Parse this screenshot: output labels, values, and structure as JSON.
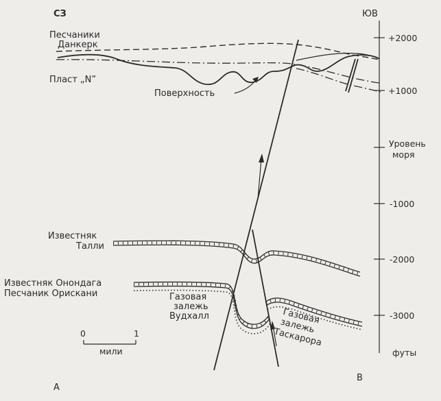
{
  "compass": {
    "northwest": "СЗ",
    "southeast": "ЮВ"
  },
  "scale_axis": {
    "ticks": [
      "+2000",
      "+1000",
      "Уровень моря",
      "-1000",
      "-2000",
      "-3000"
    ],
    "unit": "футы"
  },
  "layers": {
    "sandstone_dankerk": "Песчаники Данкерк",
    "bed_n": "Пласт „N”",
    "surface": "Поверхность",
    "limestone_tally": "Известняк Талли",
    "limestone_onondaga": "Известняк Онондага",
    "sandstone_oriskany": "Песчаник Орискани"
  },
  "gas_fields": {
    "woodhull": "Газовая залежь Вудхалл",
    "tuscarora": "Газовая залежь Таскарора"
  },
  "map_scale": {
    "min": "0",
    "max": "1",
    "unit": "мили"
  },
  "section_ends": {
    "start": "А",
    "end": "В"
  }
}
